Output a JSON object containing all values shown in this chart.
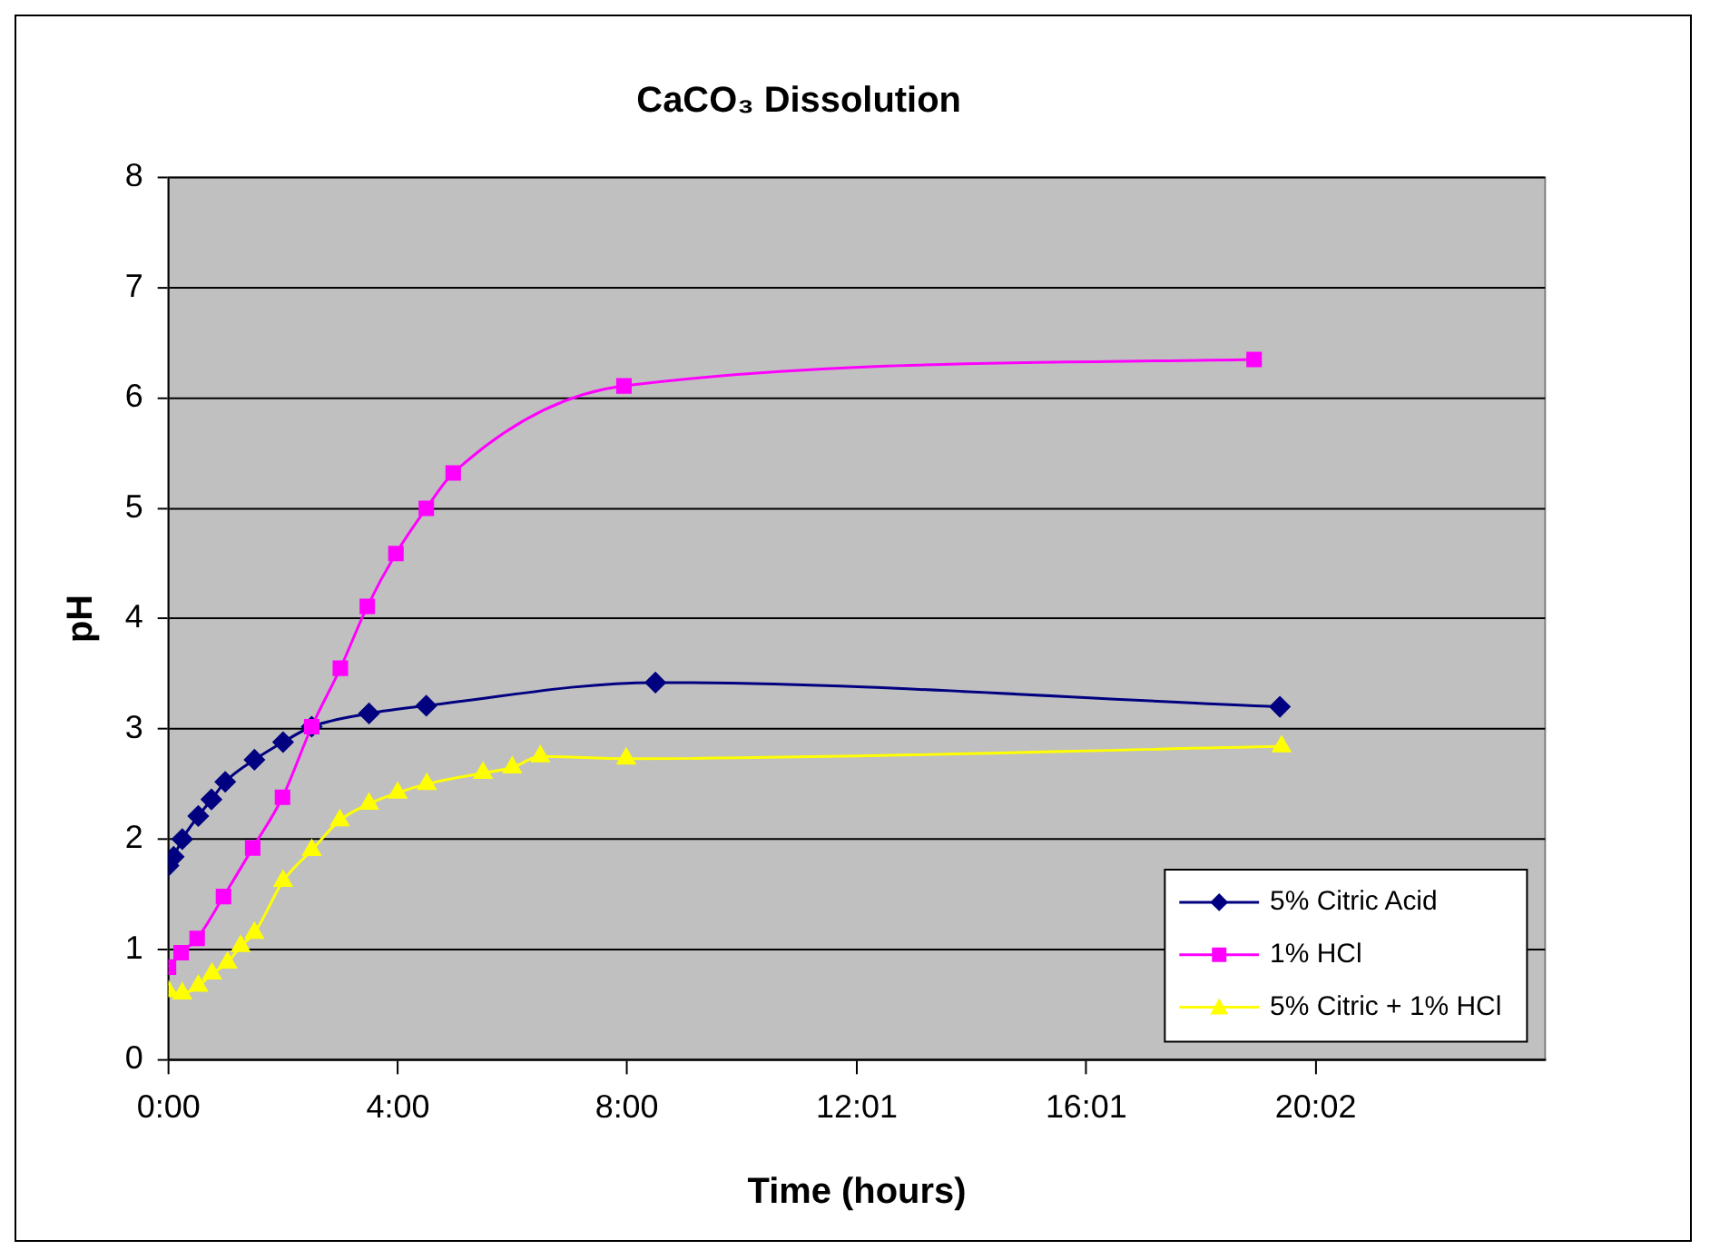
{
  "chart_data": {
    "type": "line",
    "title": "CaCO₃ Dissolution",
    "xlabel": "Time (hours)",
    "ylabel": "pH",
    "xlim": [
      0,
      24.03
    ],
    "xticks": [
      {
        "value": 0,
        "label": "0:00"
      },
      {
        "value": 4.005,
        "label": "4:00"
      },
      {
        "value": 8,
        "label": "8:00"
      },
      {
        "value": 12.015,
        "label": "12:01"
      },
      {
        "value": 16.02,
        "label": "16:01"
      },
      {
        "value": 20.025,
        "label": "20:02"
      }
    ],
    "ylim": [
      0,
      8
    ],
    "yticks": [
      0,
      1,
      2,
      3,
      4,
      5,
      6,
      7,
      8
    ],
    "grid": "y",
    "legend": "bottom right",
    "line_style": "solid",
    "series": [
      {
        "name": "5% Citric Acid",
        "color": "#000080",
        "marker": "diamond",
        "x": [
          0,
          0.09,
          0.24,
          0.52,
          0.75,
          0.99,
          1.5,
          2.0,
          2.5,
          3.5,
          4.5,
          8.5,
          19.4
        ],
        "values": [
          1.76,
          1.84,
          2.0,
          2.21,
          2.36,
          2.52,
          2.72,
          2.88,
          3.02,
          3.14,
          3.21,
          3.42,
          3.2
        ]
      },
      {
        "name": "1% HCl",
        "color": "#ff00ff",
        "marker": "square",
        "x": [
          0,
          0.22,
          0.5,
          0.96,
          1.47,
          1.99,
          2.5,
          3.0,
          3.47,
          3.97,
          4.5,
          4.97,
          7.95,
          18.95
        ],
        "values": [
          0.84,
          0.97,
          1.1,
          1.48,
          1.92,
          2.38,
          3.02,
          3.55,
          4.11,
          4.59,
          5.0,
          5.32,
          6.11,
          6.35
        ]
      },
      {
        "name": "5% Citric + 1% HCl",
        "color": "#ffff00",
        "marker": "triangle",
        "x": [
          0,
          0.24,
          0.52,
          0.76,
          1.03,
          1.26,
          1.5,
          2.0,
          2.5,
          2.99,
          3.5,
          4.0,
          4.51,
          5.49,
          6.0,
          6.49,
          7.99,
          19.43
        ],
        "values": [
          0.62,
          0.6,
          0.67,
          0.78,
          0.88,
          1.03,
          1.15,
          1.62,
          1.9,
          2.17,
          2.32,
          2.42,
          2.5,
          2.6,
          2.65,
          2.75,
          2.73,
          2.84
        ]
      }
    ]
  }
}
